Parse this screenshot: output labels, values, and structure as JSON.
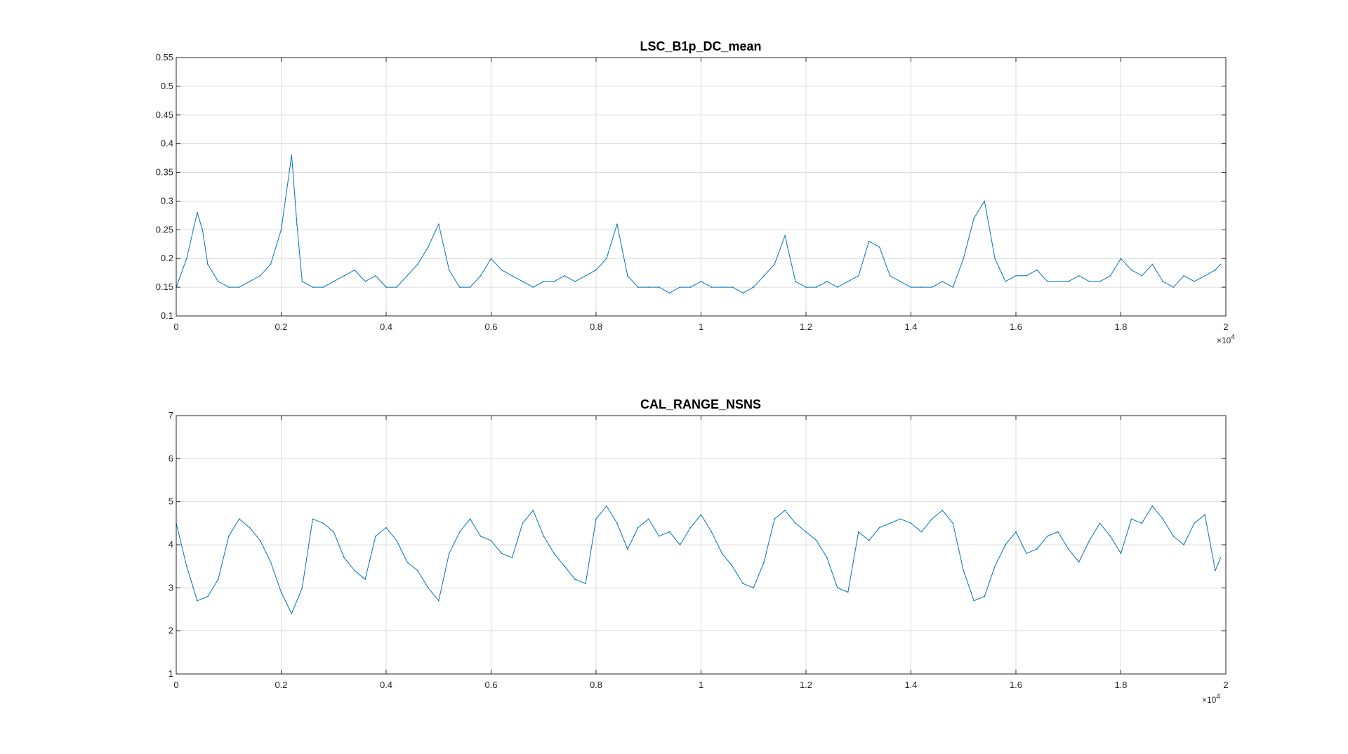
{
  "chart_data": [
    {
      "type": "line",
      "title": "LSC_B1p_DC_mean",
      "xlabel": "",
      "ylabel": "",
      "xlim": [
        0,
        20000
      ],
      "ylim": [
        0.1,
        0.55
      ],
      "x_tick_labels": [
        "0",
        "0.2",
        "0.4",
        "0.6",
        "0.8",
        "1",
        "1.2",
        "1.4",
        "1.6",
        "1.8",
        "2"
      ],
      "y_tick_labels": [
        "0.1",
        "0.15",
        "0.2",
        "0.25",
        "0.3",
        "0.35",
        "0.4",
        "0.45",
        "0.5",
        "0.55"
      ],
      "x_exponent_label": {
        "base": "×10",
        "power": "4"
      },
      "grid": true,
      "color": "#0072BD",
      "series": [
        {
          "name": "",
          "x": [
            0,
            200,
            400,
            500,
            600,
            800,
            1000,
            1200,
            1400,
            1600,
            1800,
            2000,
            2200,
            2300,
            2400,
            2600,
            2800,
            3000,
            3200,
            3400,
            3600,
            3800,
            4000,
            4200,
            4400,
            4600,
            4800,
            5000,
            5200,
            5400,
            5600,
            5800,
            6000,
            6200,
            6400,
            6600,
            6800,
            7000,
            7200,
            7400,
            7600,
            7800,
            8000,
            8200,
            8400,
            8600,
            8800,
            9000,
            9200,
            9400,
            9600,
            9800,
            10000,
            10200,
            10400,
            10600,
            10800,
            11000,
            11200,
            11400,
            11600,
            11800,
            12000,
            12200,
            12400,
            12600,
            12800,
            13000,
            13200,
            13400,
            13600,
            13800,
            14000,
            14200,
            14400,
            14600,
            14800,
            15000,
            15200,
            15400,
            15600,
            15800,
            16000,
            16200,
            16400,
            16600,
            16800,
            17000,
            17200,
            17400,
            17600,
            17800,
            18000,
            18200,
            18400,
            18600,
            18800,
            19000,
            19200,
            19400,
            19600,
            19800,
            19900
          ],
          "values": [
            0.15,
            0.2,
            0.28,
            0.25,
            0.19,
            0.16,
            0.15,
            0.15,
            0.16,
            0.17,
            0.19,
            0.25,
            0.38,
            0.26,
            0.16,
            0.15,
            0.15,
            0.16,
            0.17,
            0.18,
            0.16,
            0.17,
            0.15,
            0.15,
            0.17,
            0.19,
            0.22,
            0.26,
            0.18,
            0.15,
            0.15,
            0.17,
            0.2,
            0.18,
            0.17,
            0.16,
            0.15,
            0.16,
            0.16,
            0.17,
            0.16,
            0.17,
            0.18,
            0.2,
            0.26,
            0.17,
            0.15,
            0.15,
            0.15,
            0.14,
            0.15,
            0.15,
            0.16,
            0.15,
            0.15,
            0.15,
            0.14,
            0.15,
            0.17,
            0.19,
            0.24,
            0.16,
            0.15,
            0.15,
            0.16,
            0.15,
            0.16,
            0.17,
            0.23,
            0.22,
            0.17,
            0.16,
            0.15,
            0.15,
            0.15,
            0.16,
            0.15,
            0.2,
            0.27,
            0.3,
            0.2,
            0.16,
            0.17,
            0.17,
            0.18,
            0.16,
            0.16,
            0.16,
            0.17,
            0.16,
            0.16,
            0.17,
            0.2,
            0.18,
            0.17,
            0.19,
            0.16,
            0.15,
            0.17,
            0.16,
            0.17,
            0.18,
            0.19
          ]
        }
      ]
    },
    {
      "type": "line",
      "title": "CAL_RANGE_NSNS",
      "xlabel": "",
      "ylabel": "",
      "xlim": [
        0,
        20000
      ],
      "ylim": [
        1,
        7
      ],
      "x_tick_labels": [
        "0",
        "0.2",
        "0.4",
        "0.6",
        "0.8",
        "1",
        "1.2",
        "1.4",
        "1.6",
        "1.8",
        "2"
      ],
      "y_tick_labels": [
        "1",
        "2",
        "3",
        "4",
        "5",
        "6",
        "7"
      ],
      "x_exponent_label": {
        "base": "×10",
        "power": "4"
      },
      "grid": true,
      "color": "#0072BD",
      "series": [
        {
          "name": "",
          "x": [
            0,
            200,
            400,
            600,
            800,
            1000,
            1200,
            1400,
            1600,
            1800,
            2000,
            2200,
            2400,
            2600,
            2800,
            3000,
            3200,
            3400,
            3600,
            3800,
            4000,
            4200,
            4400,
            4600,
            4800,
            5000,
            5200,
            5400,
            5600,
            5800,
            6000,
            6200,
            6400,
            6600,
            6800,
            7000,
            7200,
            7400,
            7600,
            7800,
            8000,
            8200,
            8400,
            8600,
            8800,
            9000,
            9200,
            9400,
            9600,
            9800,
            10000,
            10200,
            10400,
            10600,
            10800,
            11000,
            11200,
            11400,
            11600,
            11800,
            12000,
            12200,
            12400,
            12600,
            12800,
            13000,
            13200,
            13400,
            13600,
            13800,
            14000,
            14200,
            14400,
            14600,
            14800,
            15000,
            15200,
            15400,
            15600,
            15800,
            16000,
            16200,
            16400,
            16600,
            16800,
            17000,
            17200,
            17400,
            17600,
            17800,
            18000,
            18200,
            18400,
            18600,
            18800,
            19000,
            19200,
            19400,
            19600,
            19800,
            19900
          ],
          "values": [
            4.5,
            3.5,
            2.7,
            2.8,
            3.2,
            4.2,
            4.6,
            4.4,
            4.1,
            3.6,
            2.9,
            2.4,
            3.0,
            4.6,
            4.5,
            4.3,
            3.7,
            3.4,
            3.2,
            4.2,
            4.4,
            4.1,
            3.6,
            3.4,
            3.0,
            2.7,
            3.8,
            4.3,
            4.6,
            4.2,
            4.1,
            3.8,
            3.7,
            4.5,
            4.8,
            4.2,
            3.8,
            3.5,
            3.2,
            3.1,
            4.6,
            4.9,
            4.5,
            3.9,
            4.4,
            4.6,
            4.2,
            4.3,
            4.0,
            4.4,
            4.7,
            4.3,
            3.8,
            3.5,
            3.1,
            3.0,
            3.6,
            4.6,
            4.8,
            4.5,
            4.3,
            4.1,
            3.7,
            3.0,
            2.9,
            4.3,
            4.1,
            4.4,
            4.5,
            4.6,
            4.5,
            4.3,
            4.6,
            4.8,
            4.5,
            3.4,
            2.7,
            2.8,
            3.5,
            4.0,
            4.3,
            3.8,
            3.9,
            4.2,
            4.3,
            3.9,
            3.6,
            4.1,
            4.5,
            4.2,
            3.8,
            4.6,
            4.5,
            4.9,
            4.6,
            4.2,
            4.0,
            4.5,
            4.7,
            3.4,
            3.7
          ]
        }
      ]
    }
  ]
}
